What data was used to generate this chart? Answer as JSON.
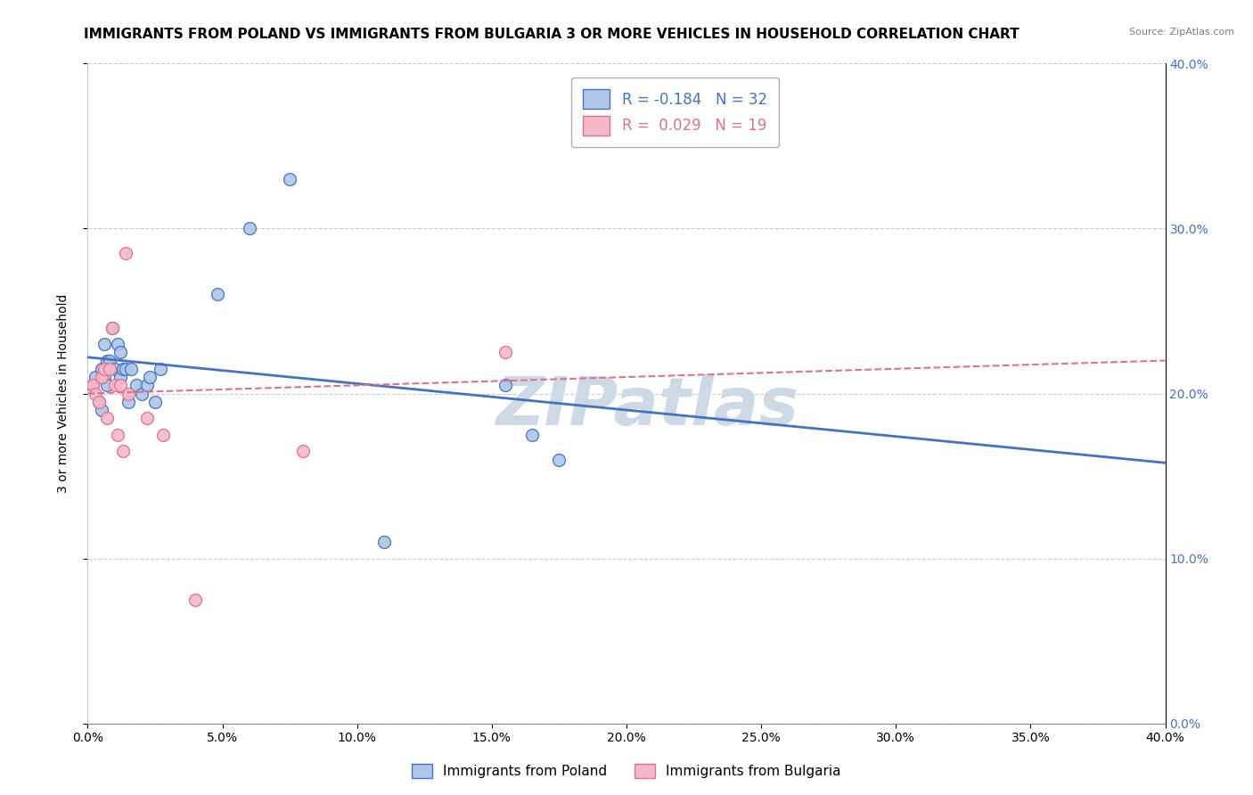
{
  "title": "IMMIGRANTS FROM POLAND VS IMMIGRANTS FROM BULGARIA 3 OR MORE VEHICLES IN HOUSEHOLD CORRELATION CHART",
  "source": "Source: ZipAtlas.com",
  "ylabel_left": "3 or more Vehicles in Household",
  "x_min": 0.0,
  "x_max": 0.4,
  "y_min": 0.0,
  "y_max": 0.4,
  "poland_R": -0.184,
  "poland_N": 32,
  "bulgaria_R": 0.029,
  "bulgaria_N": 19,
  "poland_color": "#aec6e8",
  "poland_line_color": "#4472c4",
  "bulgaria_color": "#f4b8c8",
  "bulgaria_line_color": "#e07090",
  "poland_x": [
    0.002,
    0.003,
    0.004,
    0.005,
    0.005,
    0.006,
    0.006,
    0.007,
    0.007,
    0.008,
    0.009,
    0.01,
    0.011,
    0.012,
    0.012,
    0.013,
    0.014,
    0.015,
    0.016,
    0.018,
    0.02,
    0.022,
    0.023,
    0.025,
    0.027,
    0.048,
    0.06,
    0.075,
    0.11,
    0.155,
    0.165,
    0.175
  ],
  "poland_y": [
    0.205,
    0.21,
    0.195,
    0.215,
    0.19,
    0.21,
    0.23,
    0.205,
    0.22,
    0.22,
    0.24,
    0.215,
    0.23,
    0.225,
    0.21,
    0.215,
    0.215,
    0.195,
    0.215,
    0.205,
    0.2,
    0.205,
    0.21,
    0.195,
    0.215,
    0.26,
    0.3,
    0.33,
    0.11,
    0.205,
    0.175,
    0.16
  ],
  "bulgaria_x": [
    0.002,
    0.003,
    0.004,
    0.005,
    0.006,
    0.007,
    0.008,
    0.009,
    0.01,
    0.011,
    0.012,
    0.013,
    0.014,
    0.015,
    0.022,
    0.028,
    0.04,
    0.08,
    0.155
  ],
  "bulgaria_y": [
    0.205,
    0.2,
    0.195,
    0.21,
    0.215,
    0.185,
    0.215,
    0.24,
    0.205,
    0.175,
    0.205,
    0.165,
    0.285,
    0.2,
    0.185,
    0.175,
    0.075,
    0.165,
    0.225
  ],
  "poland_trend_x": [
    0.0,
    0.4
  ],
  "poland_trend_y": [
    0.222,
    0.158
  ],
  "bulgaria_trend_x": [
    0.0,
    0.4
  ],
  "bulgaria_trend_y": [
    0.2,
    0.22
  ],
  "watermark": "ZIPatlas",
  "watermark_color": "#cdd9e5",
  "background_color": "#ffffff",
  "grid_color": "#cccccc",
  "legend_border_color": "#b0b0b0",
  "title_fontsize": 11,
  "axis_label_fontsize": 10,
  "tick_fontsize": 10,
  "dot_size": 100
}
